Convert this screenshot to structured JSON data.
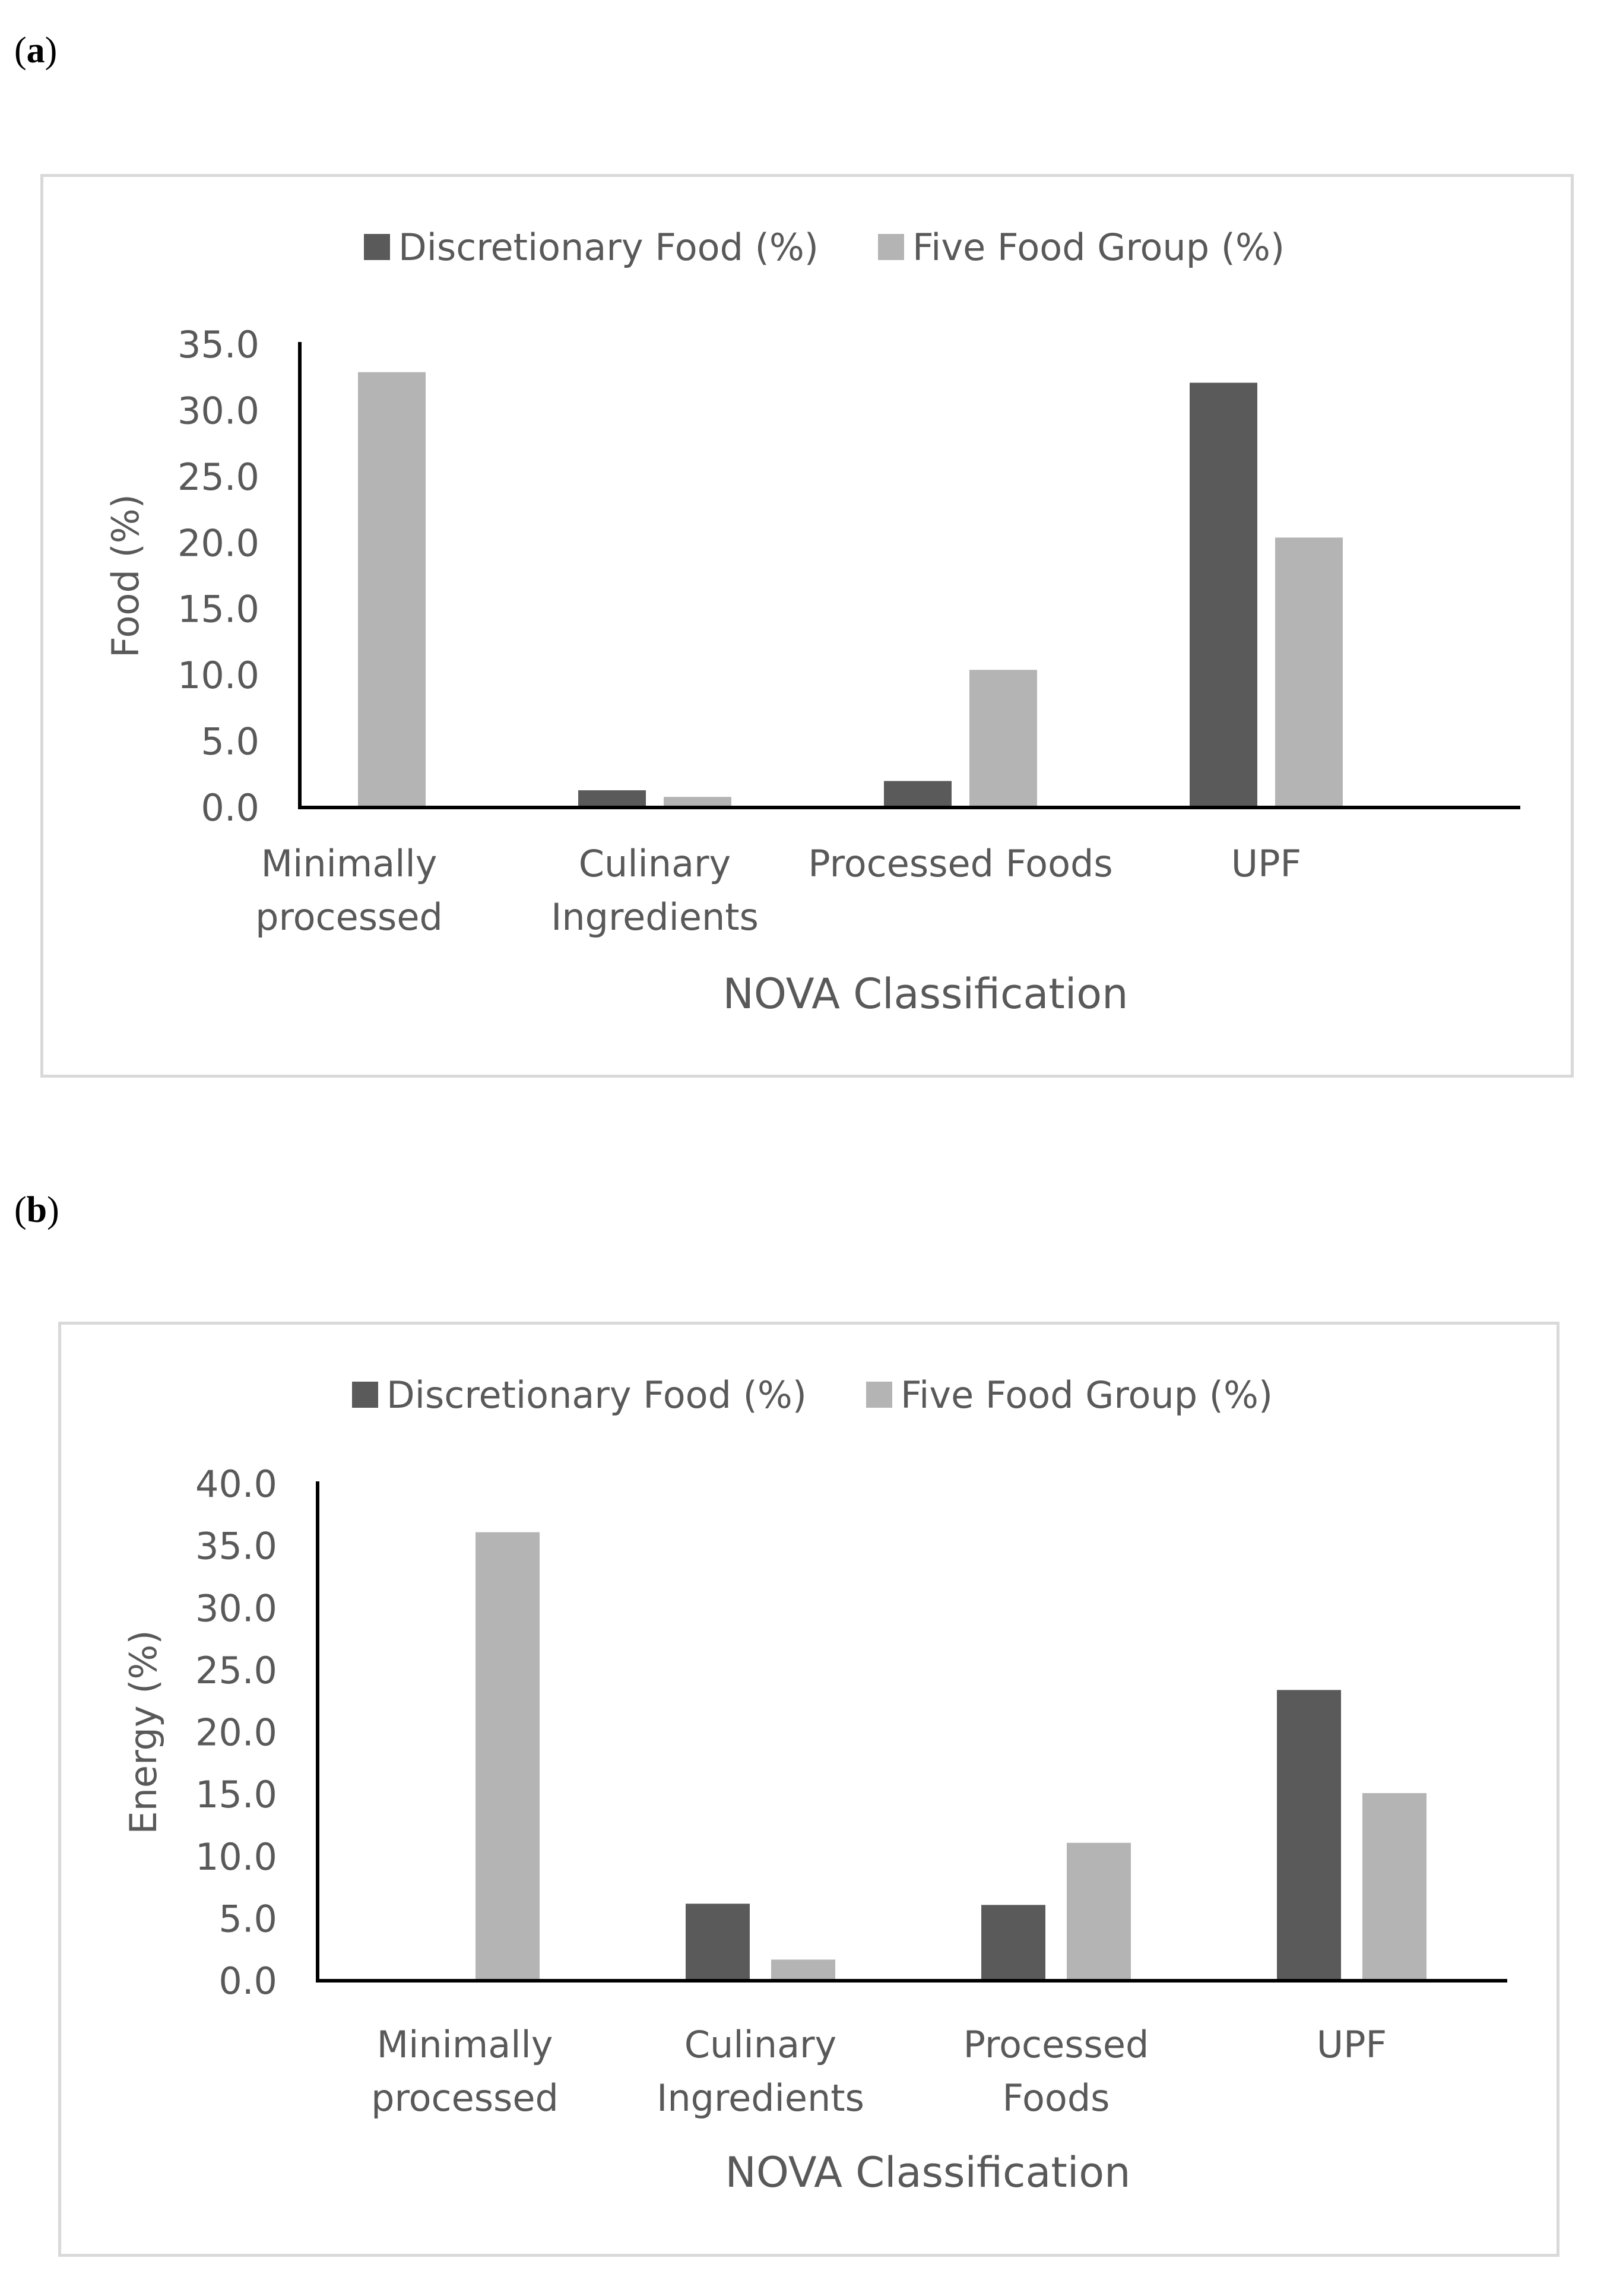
{
  "panels": [
    {
      "label_open": "(",
      "label_letter": "a",
      "label_close": ")"
    },
    {
      "label_open": "(",
      "label_letter": "b",
      "label_close": ")"
    }
  ],
  "colors": {
    "discretionary": "#5a5a5a",
    "five_food_group": "#b4b4b4",
    "axis": "#000000",
    "text": "#595959",
    "frame": "#d9d9d9"
  },
  "chart_data": [
    {
      "type": "bar",
      "title": "",
      "legend": [
        "Discretionary Food (%)",
        "Five Food Group (%)"
      ],
      "legend_placement": "top-center",
      "categories": [
        [
          "Minimally",
          "processed"
        ],
        [
          "Culinary",
          "Ingredients"
        ],
        [
          "Processed Foods"
        ],
        [
          "UPF"
        ]
      ],
      "series": [
        {
          "name": "Discretionary Food (%)",
          "values": [
            0.0,
            1.3,
            2.0,
            32.1
          ]
        },
        {
          "name": "Five Food Group (%)",
          "values": [
            32.9,
            0.8,
            10.4,
            20.4
          ]
        }
      ],
      "xlabel": "NOVA Classification",
      "ylabel": "Food (%)",
      "ylim": [
        0,
        35
      ],
      "yticks": [
        "0.0",
        "5.0",
        "10.0",
        "15.0",
        "20.0",
        "25.0",
        "30.0",
        "35.0"
      ],
      "grid": false
    },
    {
      "type": "bar",
      "title": "",
      "legend": [
        "Discretionary Food (%)",
        "Five Food Group (%)"
      ],
      "legend_placement": "top-center",
      "categories": [
        [
          "Minimally",
          "processed"
        ],
        [
          "Culinary",
          "Ingredients"
        ],
        [
          "Processed",
          "Foods"
        ],
        [
          "UPF"
        ]
      ],
      "series": [
        {
          "name": "Discretionary Food (%)",
          "values": [
            0.0,
            6.2,
            6.1,
            23.4
          ]
        },
        {
          "name": "Five Food Group (%)",
          "values": [
            36.1,
            1.7,
            11.1,
            15.1
          ]
        }
      ],
      "xlabel": "NOVA Classification",
      "ylabel": "Energy (%)",
      "ylim": [
        0,
        40
      ],
      "yticks": [
        "0.0",
        "5.0",
        "10.0",
        "15.0",
        "20.0",
        "25.0",
        "30.0",
        "35.0",
        "40.0"
      ],
      "grid": false
    }
  ]
}
